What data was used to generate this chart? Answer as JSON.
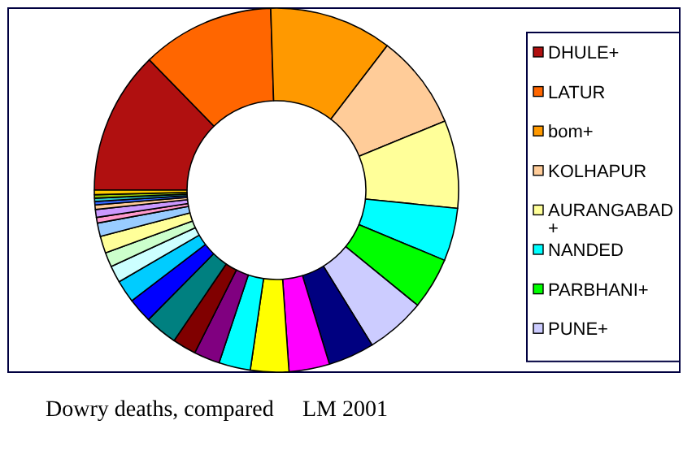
{
  "chart_data": {
    "type": "donut",
    "categories": [
      "DHULE+",
      "LATUR",
      "bom+",
      "KOLHAPUR",
      "AURANGABAD+",
      "NANDED",
      "PARBHANI+",
      "PUNE+",
      null,
      null,
      null,
      null,
      null,
      null,
      null,
      null,
      null,
      null,
      null,
      null,
      null,
      null,
      null,
      null,
      null,
      null,
      null,
      null
    ],
    "values": [
      12.7,
      11.8,
      10.9,
      8.4,
      7.8,
      4.7,
      4.6,
      5.3,
      4.1,
      3.6,
      3.4,
      2.8,
      2.3,
      2.1,
      2.9,
      2.2,
      2.0,
      1.5,
      1.3,
      1.5,
      1.2,
      0.5,
      0.7,
      0.4,
      0.3,
      0.3,
      0.3,
      0.4
    ],
    "colors": [
      "#b01010",
      "#ff6600",
      "#ff9900",
      "#ffcc99",
      "#ffff99",
      "#00ffff",
      "#00ff00",
      "#ccccff",
      "#000080",
      "#ff00ff",
      "#ffff00",
      "#00ffff",
      "#800080",
      "#800000",
      "#008080",
      "#0000ff",
      "#00ccff",
      "#ccffff",
      "#ccffcc",
      "#ffff99",
      "#99ccff",
      "#ff99cc",
      "#cc99ff",
      "#ffcc99",
      "#3366ff",
      "#33cccc",
      "#99cc00",
      "#ffcc00"
    ],
    "legend": "right",
    "annotations": [
      "Dowry deaths, compared",
      "LM 2001"
    ]
  }
}
